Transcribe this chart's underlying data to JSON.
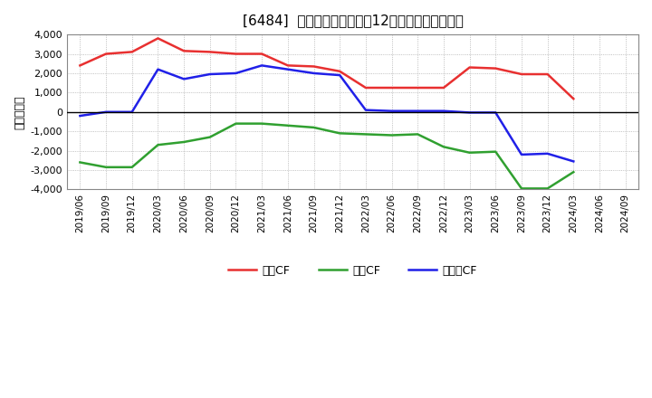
{
  "title": "[6484]  キャッシュフローの12か月移動合計の推移",
  "ylabel": "（百万円）",
  "x_labels": [
    "2019/06",
    "2019/09",
    "2019/12",
    "2020/03",
    "2020/06",
    "2020/09",
    "2020/12",
    "2021/03",
    "2021/06",
    "2021/09",
    "2021/12",
    "2022/03",
    "2022/06",
    "2022/09",
    "2022/12",
    "2023/03",
    "2023/06",
    "2023/09",
    "2023/12",
    "2024/03",
    "2024/06",
    "2024/09"
  ],
  "operating_cf": [
    2400,
    3000,
    3100,
    3800,
    3150,
    3100,
    3000,
    3000,
    2400,
    2350,
    2100,
    1250,
    1250,
    1250,
    1250,
    2300,
    2250,
    1950,
    1950,
    680,
    null,
    null
  ],
  "investing_cf": [
    -2600,
    -2850,
    -2850,
    -1700,
    -1550,
    -1300,
    -600,
    -600,
    -700,
    -800,
    -1100,
    -1150,
    -1200,
    -1150,
    -1800,
    -2100,
    -2050,
    -3950,
    -3950,
    -3100,
    null,
    null
  ],
  "free_cf": [
    -200,
    0,
    0,
    2200,
    1700,
    1950,
    2000,
    2400,
    2200,
    2000,
    1900,
    100,
    50,
    50,
    50,
    -30,
    -30,
    -2200,
    -2150,
    -2550,
    null,
    null
  ],
  "operating_color": "#e83030",
  "investing_color": "#30a030",
  "free_cf_color": "#2020e8",
  "ylim": [
    -4000,
    4000
  ],
  "yticks": [
    -4000,
    -3000,
    -2000,
    -1000,
    0,
    1000,
    2000,
    3000,
    4000
  ],
  "legend_labels": [
    "営業CF",
    "投資CF",
    "フリーCF"
  ],
  "bg_color": "#ffffff",
  "plot_bg_color": "#ffffff",
  "grid_color": "#aaaaaa",
  "line_width": 1.8
}
